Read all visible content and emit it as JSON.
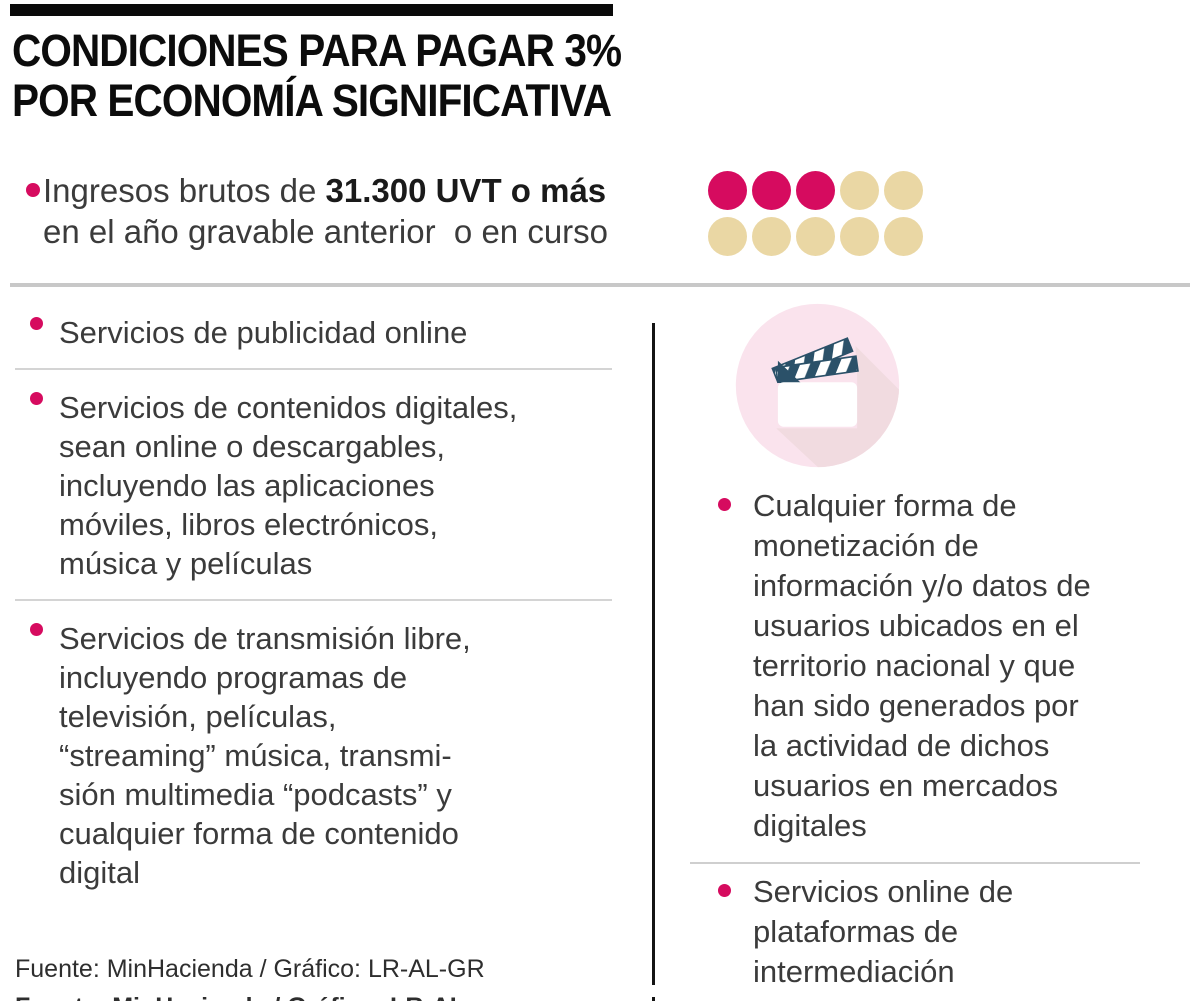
{
  "title": {
    "line1": "CONDICIONES PARA PAGAR 3%",
    "line2": "POR ECONOMÍA SIGNIFICATIVA"
  },
  "intro": {
    "text_regular": "Ingresos brutos de ",
    "text_bold": "31.300 UVT o más",
    "text_line2": "en el año gravable anterior  o en curso"
  },
  "uvt_dots": {
    "total": 10,
    "active": 3,
    "active_color": "#d60b5f",
    "inactive_color": "#ead7a4"
  },
  "left_column": {
    "items": [
      {
        "lines": [
          "Servicios de publicidad online"
        ]
      },
      {
        "lines": [
          "Servicios de contenidos digitales,",
          "sean online o descargables,",
          "incluyendo las aplicaciones",
          "móviles, libros electrónicos,",
          "música y películas"
        ]
      },
      {
        "lines": [
          "Servicios de transmisión libre,",
          "incluyendo programas de",
          "televisión, películas,",
          "“streaming” música, transmi-",
          "sión multimedia “podcasts” y",
          "cualquier forma de contenido",
          "digital"
        ]
      }
    ]
  },
  "right_column": {
    "icon": "clapperboard-icon",
    "items": [
      {
        "lines": [
          "Cualquier forma de",
          "monetización de",
          "información y/o datos de",
          "usuarios ubicados en el",
          "territorio nacional y que",
          "han sido generados por",
          "la actividad de dichos",
          "usuarios en mercados",
          "digitales"
        ]
      },
      {
        "lines": [
          "Servicios online de",
          "plataformas de",
          "intermediación"
        ]
      }
    ]
  },
  "footer": {
    "credit": "Fuente: MinHacienda / Gráfico: LR-AL-GR"
  },
  "colors": {
    "accent_pink": "#d60b5f",
    "dot_beige": "#ead7a4",
    "icon_bg_pink": "#fae3ed",
    "icon_shadow_pink": "#f1dbe0",
    "icon_navy": "#2b5169",
    "divider_gray": "#c8c8c8",
    "bar_black": "#0a0a0a"
  }
}
